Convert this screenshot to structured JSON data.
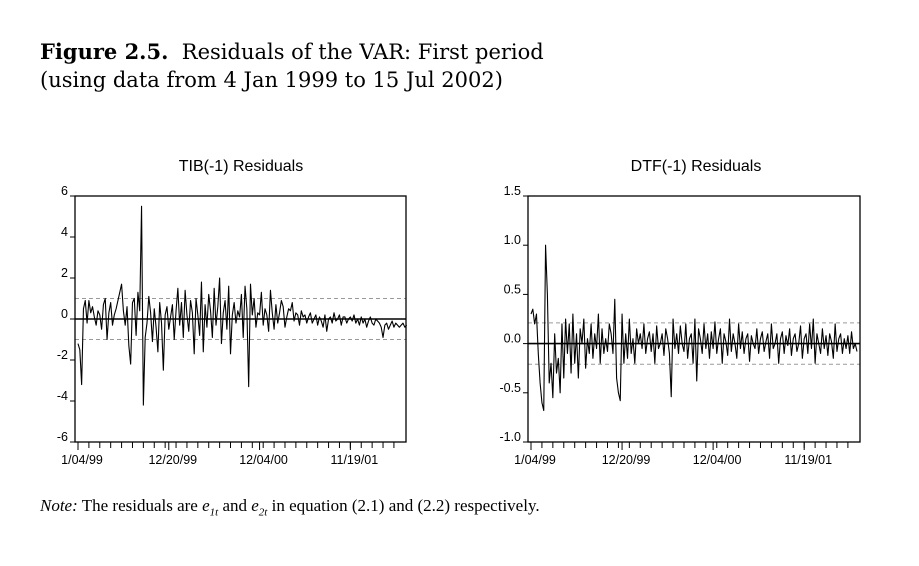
{
  "figure": {
    "label": "Figure 2.5.",
    "title_line1": "Residuals of the VAR: First period",
    "title_line2": "(using data from 4 Jan 1999 to 15 Jul 2002)"
  },
  "note": {
    "label": "Note:",
    "text_before": " The residuals are ",
    "e1": "e",
    "e1_sub": "1t",
    "mid": " and ",
    "e2": "e",
    "e2_sub": "2t",
    "text_after": " in equation (2.1) and (2.2) respectively."
  },
  "chart_data": [
    {
      "type": "line",
      "title": "TIB(-1) Residuals",
      "xlabel": "",
      "ylabel": "",
      "ylim": [
        -6,
        6
      ],
      "yticks": [
        -6,
        -4,
        -2,
        0,
        2,
        4,
        6
      ],
      "ytick_labels": [
        "-6",
        "-4",
        "-2",
        "0",
        "2",
        "4",
        "6"
      ],
      "xtick_labels": [
        "1/04/99",
        "12/20/99",
        "12/04/00",
        "11/19/01"
      ],
      "xtick_positions": [
        0,
        50,
        100,
        150
      ],
      "n_obs": 180,
      "bands": [
        1.0,
        -1.0
      ],
      "series": [
        {
          "name": "TIB(-1) residuals",
          "values": [
            -1.2,
            -1.5,
            -3.2,
            0.5,
            0.9,
            -0.2,
            0.9,
            0.3,
            0.6,
            0.1,
            -0.3,
            0.4,
            0.2,
            -0.5,
            0.7,
            1.0,
            -1.0,
            0.3,
            0.8,
            -0.3,
            0.2,
            0.5,
            0.9,
            1.3,
            1.7,
            0.4,
            -0.3,
            0.6,
            -1.3,
            -2.2,
            0.8,
            1.0,
            -0.8,
            1.3,
            0.4,
            5.5,
            -4.2,
            -0.9,
            -0.2,
            1.1,
            0.3,
            -1.1,
            0.5,
            -0.4,
            -1.6,
            0.8,
            -0.2,
            -2.5,
            0.2,
            0.6,
            -0.5,
            0.1,
            0.7,
            -1.0,
            0.4,
            1.5,
            -0.3,
            0.8,
            -0.9,
            1.4,
            0.2,
            -0.6,
            0.9,
            0.3,
            -1.7,
            1.0,
            0.2,
            -0.8,
            1.8,
            -1.6,
            0.7,
            -0.4,
            1.2,
            0.4,
            -0.9,
            1.5,
            -0.3,
            0.6,
            2.0,
            -1.2,
            0.3,
            0.9,
            -0.5,
            1.6,
            -1.7,
            0.2,
            0.8,
            -0.2,
            0.4,
            0.1,
            1.2,
            -0.9,
            1.6,
            0.5,
            -3.3,
            1.7,
            0.2,
            1.0,
            -0.4,
            0.3,
            0.2,
            1.3,
            -0.3,
            0.5,
            0.2,
            -0.6,
            1.4,
            0.3,
            -0.5,
            0.7,
            -0.2,
            0.3,
            0.9,
            0.6,
            -0.4,
            0.1,
            0.5,
            0.4,
            0.8,
            -0.1,
            0.3,
            0.2,
            -0.3,
            0.4,
            0.1,
            0.2,
            -0.2,
            0.1,
            0.3,
            -0.2,
            0.0,
            0.2,
            -0.3,
            0.1,
            -0.1,
            -0.4,
            0.2,
            -0.6,
            0.0,
            0.1,
            -0.2,
            0.3,
            -0.1,
            0.0,
            0.2,
            -0.3,
            0.1,
            0.1,
            -0.2,
            0.0,
            0.1,
            -0.1,
            0.2,
            -0.2,
            0.0,
            -0.3,
            0.1,
            -0.2,
            0.0,
            -0.4,
            -0.1,
            0.1,
            -0.2,
            -0.3,
            0.0,
            -0.1,
            -0.2,
            -0.4,
            -0.9,
            -0.3,
            -0.2,
            -0.5,
            -0.3,
            -0.1,
            -0.4,
            -0.2,
            -0.3,
            -0.4,
            -0.3,
            -0.2,
            -0.4,
            -0.3
          ]
        }
      ]
    },
    {
      "type": "line",
      "title": "DTF(-1) Residuals",
      "xlabel": "",
      "ylabel": "",
      "ylim": [
        -1.0,
        1.5
      ],
      "yticks": [
        -1.0,
        -0.5,
        0.0,
        0.5,
        1.0,
        1.5
      ],
      "ytick_labels": [
        "-1.0",
        "-0.5",
        "0.0",
        "0.5",
        "1.0",
        "1.5"
      ],
      "xtick_labels": [
        "1/04/99",
        "12/20/99",
        "12/04/00",
        "11/19/01"
      ],
      "xtick_positions": [
        0,
        50,
        100,
        150
      ],
      "n_obs": 180,
      "bands": [
        0.21,
        -0.21
      ],
      "series": [
        {
          "name": "DTF(-1) residuals",
          "values": [
            0.3,
            0.35,
            0.2,
            0.3,
            -0.1,
            -0.4,
            -0.6,
            -0.68,
            1.0,
            0.5,
            -0.4,
            -0.2,
            -0.55,
            0.1,
            -0.3,
            -0.15,
            -0.5,
            0.2,
            -0.35,
            0.25,
            -0.1,
            0.2,
            -0.3,
            0.3,
            -0.2,
            0.1,
            -0.35,
            0.15,
            0.0,
            0.25,
            -0.25,
            0.05,
            -0.1,
            0.2,
            -0.15,
            0.1,
            -0.05,
            0.3,
            -0.2,
            0.15,
            -0.1,
            0.05,
            -0.08,
            0.2,
            0.1,
            -0.1,
            0.45,
            -0.35,
            -0.5,
            -0.58,
            0.3,
            -0.2,
            0.1,
            -0.15,
            0.25,
            -0.1,
            0.05,
            -0.2,
            0.15,
            0.0,
            0.1,
            -0.05,
            0.2,
            -0.1,
            0.05,
            0.12,
            -0.08,
            0.1,
            -0.2,
            0.18,
            -0.05,
            0.0,
            0.1,
            -0.12,
            0.15,
            0.05,
            -0.1,
            -0.54,
            0.25,
            -0.05,
            0.1,
            -0.1,
            0.18,
            0.0,
            -0.08,
            0.2,
            -0.15,
            0.05,
            0.1,
            -0.2,
            0.25,
            -0.38,
            0.15,
            0.05,
            -0.1,
            0.2,
            -0.05,
            0.1,
            -0.15,
            0.12,
            -0.05,
            0.22,
            -0.1,
            0.05,
            0.15,
            -0.2,
            0.1,
            0.02,
            -0.12,
            0.25,
            -0.08,
            0.1,
            0.0,
            -0.15,
            0.2,
            -0.05,
            0.12,
            -0.1,
            0.05,
            0.1,
            -0.18,
            0.08,
            0.0,
            -0.05,
            0.15,
            -0.1,
            0.05,
            0.12,
            -0.08,
            0.02,
            0.1,
            -0.15,
            0.2,
            -0.05,
            0.0,
            0.1,
            -0.2,
            0.05,
            0.12,
            -0.1,
            0.08,
            -0.02,
            0.15,
            -0.12,
            0.05,
            0.1,
            -0.08,
            0.0,
            0.18,
            -0.15,
            0.05,
            0.1,
            -0.1,
            0.2,
            -0.05,
            0.25,
            -0.2,
            0.1,
            0.0,
            -0.1,
            0.15,
            -0.05,
            0.08,
            -0.12,
            0.1,
            0.02,
            -0.15,
            0.2,
            -0.08,
            0.05,
            0.1,
            -0.1,
            0.05,
            -0.05,
            0.08,
            -0.1,
            0.12,
            -0.05,
            0.0,
            -0.08
          ]
        }
      ]
    }
  ]
}
